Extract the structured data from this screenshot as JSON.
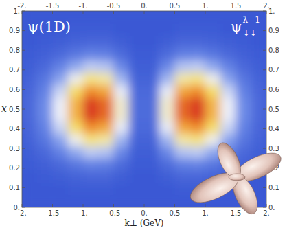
{
  "chart_data": {
    "type": "heatmap",
    "x_label": "k⊥ (GeV)",
    "y_label": "x",
    "annotations": [
      {
        "text": "ψ(1D)"
      },
      {
        "text": "ψ",
        "superscript": "λ=1",
        "subscript": "↓↓"
      }
    ],
    "xlim": [
      -2,
      2
    ],
    "ylim": [
      0,
      1
    ],
    "xticks": [
      {
        "value": -2,
        "label": "-2."
      },
      -1.5,
      {
        "value": -1,
        "label": "-1."
      },
      -0.5,
      {
        "value": 0,
        "label": "0."
      },
      0.5,
      {
        "value": 1,
        "label": "1."
      },
      1.5,
      {
        "value": 2,
        "label": "2."
      }
    ],
    "yticks": [
      {
        "value": 0,
        "label": "0."
      },
      0.1,
      0.2,
      0.3,
      0.4,
      0.5,
      0.6,
      0.7,
      0.8,
      0.9,
      {
        "value": 1,
        "label": "1."
      }
    ],
    "x_bins": [
      -2,
      -1.75,
      -1.5,
      -1.25,
      -1,
      -0.75,
      -0.5,
      -0.25,
      0,
      0.25,
      0.5,
      0.75,
      1,
      1.25,
      1.5,
      1.75,
      2
    ],
    "y_bins": [
      0,
      0.0625,
      0.125,
      0.1875,
      0.25,
      0.3125,
      0.375,
      0.4375,
      0.5,
      0.5625,
      0.625,
      0.6875,
      0.75,
      0.8125,
      0.875,
      0.9375,
      1
    ],
    "zlim": [
      0,
      1
    ],
    "cells": [
      [
        0,
        0,
        0,
        0,
        0,
        0,
        0,
        0,
        0,
        0,
        0,
        0,
        0,
        0,
        0,
        0
      ],
      [
        0,
        0,
        0,
        0.01,
        0.01,
        0.01,
        0,
        0,
        0,
        0,
        0.01,
        0.01,
        0.01,
        0,
        0,
        0
      ],
      [
        0,
        0.01,
        0.02,
        0.04,
        0.05,
        0.05,
        0.02,
        0,
        0,
        0.02,
        0.05,
        0.05,
        0.04,
        0.02,
        0.01,
        0
      ],
      [
        0.01,
        0.03,
        0.06,
        0.11,
        0.15,
        0.14,
        0.07,
        0.01,
        0.01,
        0.07,
        0.14,
        0.15,
        0.11,
        0.06,
        0.03,
        0.01
      ],
      [
        0.02,
        0.06,
        0.15,
        0.26,
        0.34,
        0.32,
        0.17,
        0.02,
        0.02,
        0.17,
        0.32,
        0.34,
        0.26,
        0.15,
        0.06,
        0.02
      ],
      [
        0.04,
        0.11,
        0.25,
        0.44,
        0.59,
        0.54,
        0.29,
        0.04,
        0.04,
        0.29,
        0.54,
        0.59,
        0.44,
        0.25,
        0.11,
        0.04
      ],
      [
        0.05,
        0.15,
        0.36,
        0.63,
        0.83,
        0.77,
        0.41,
        0.06,
        0.06,
        0.41,
        0.77,
        0.83,
        0.63,
        0.36,
        0.15,
        0.05
      ],
      [
        0.06,
        0.18,
        0.42,
        0.74,
        0.98,
        0.9,
        0.48,
        0.07,
        0.07,
        0.48,
        0.9,
        0.98,
        0.74,
        0.42,
        0.18,
        0.06
      ],
      [
        0.06,
        0.18,
        0.42,
        0.74,
        0.98,
        0.9,
        0.48,
        0.07,
        0.07,
        0.48,
        0.9,
        0.98,
        0.74,
        0.42,
        0.18,
        0.06
      ],
      [
        0.05,
        0.15,
        0.36,
        0.63,
        0.83,
        0.77,
        0.41,
        0.06,
        0.06,
        0.41,
        0.77,
        0.83,
        0.63,
        0.36,
        0.15,
        0.05
      ],
      [
        0.04,
        0.11,
        0.25,
        0.44,
        0.59,
        0.54,
        0.29,
        0.04,
        0.04,
        0.29,
        0.54,
        0.59,
        0.44,
        0.25,
        0.11,
        0.04
      ],
      [
        0.02,
        0.06,
        0.15,
        0.26,
        0.34,
        0.32,
        0.17,
        0.02,
        0.02,
        0.17,
        0.32,
        0.34,
        0.26,
        0.15,
        0.06,
        0.02
      ],
      [
        0.01,
        0.03,
        0.06,
        0.11,
        0.15,
        0.14,
        0.07,
        0.01,
        0.01,
        0.07,
        0.14,
        0.15,
        0.11,
        0.06,
        0.03,
        0.01
      ],
      [
        0,
        0.01,
        0.02,
        0.04,
        0.05,
        0.05,
        0.02,
        0,
        0,
        0.02,
        0.05,
        0.05,
        0.04,
        0.02,
        0.01,
        0
      ],
      [
        0,
        0,
        0,
        0.01,
        0.01,
        0.01,
        0,
        0,
        0,
        0,
        0.01,
        0.01,
        0.01,
        0,
        0,
        0
      ],
      [
        0,
        0,
        0,
        0,
        0,
        0,
        0,
        0,
        0,
        0,
        0,
        0,
        0,
        0,
        0,
        0
      ]
    ]
  }
}
